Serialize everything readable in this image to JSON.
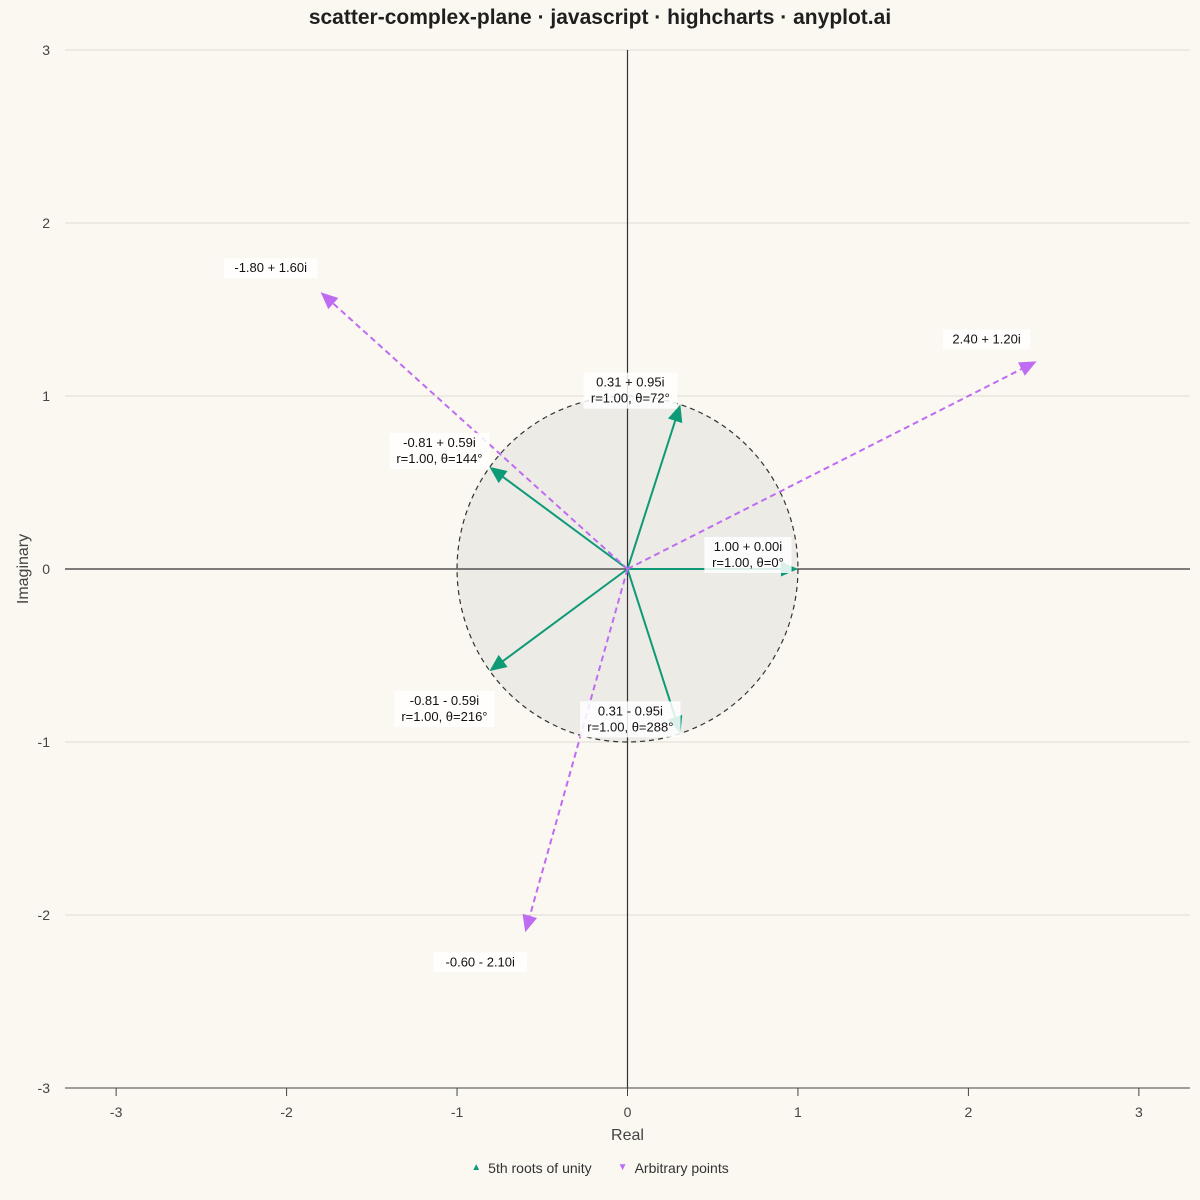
{
  "chart_data": {
    "type": "scatter",
    "title": "scatter-complex-plane · javascript · highcharts · anyplot.ai",
    "xlabel": "Real",
    "ylabel": "Imaginary",
    "xlim": [
      -3.3,
      3.3
    ],
    "ylim": [
      -3,
      3
    ],
    "x_ticks": [
      -3,
      -2,
      -1,
      0,
      1,
      2,
      3
    ],
    "y_ticks": [
      -3,
      -2,
      -1,
      0,
      1,
      2,
      3
    ],
    "grid": "horizontal",
    "unit_circle": {
      "radius": 1
    },
    "legend_position": "bottom-center",
    "series": [
      {
        "name": "5th roots of unity",
        "color": "#0E9A77",
        "marker": "triangle",
        "line_style": "solid",
        "points": [
          {
            "x": 1.0,
            "y": 0.0,
            "label": "1.00 + 0.00i",
            "polar": "r=1.00, θ=0°"
          },
          {
            "x": 0.31,
            "y": 0.95,
            "label": "0.31 + 0.95i",
            "polar": "r=1.00, θ=72°"
          },
          {
            "x": -0.81,
            "y": 0.59,
            "label": "-0.81 + 0.59i",
            "polar": "r=1.00, θ=144°"
          },
          {
            "x": -0.81,
            "y": -0.59,
            "label": "-0.81 - 0.59i",
            "polar": "r=1.00, θ=216°"
          },
          {
            "x": 0.31,
            "y": -0.95,
            "label": "0.31 - 0.95i",
            "polar": "r=1.00, θ=288°"
          }
        ]
      },
      {
        "name": "Arbitrary points",
        "color": "#BF6CF2",
        "marker": "triangle-down",
        "line_style": "dashed",
        "points": [
          {
            "x": -1.8,
            "y": 1.6,
            "label": "-1.80 + 1.60i"
          },
          {
            "x": 2.4,
            "y": 1.2,
            "label": "2.40 + 1.20i"
          },
          {
            "x": -0.6,
            "y": -2.1,
            "label": "-0.60 - 2.10i"
          }
        ]
      }
    ]
  }
}
